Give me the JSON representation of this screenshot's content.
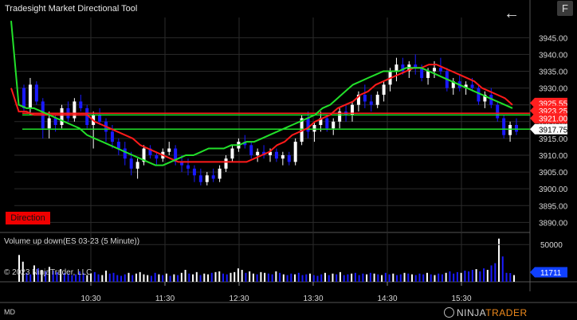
{
  "app": {
    "title": "Tradesight Market Directional Tool",
    "f_button": "F",
    "back_icon": "back-arrow-icon",
    "direction_label": "Direction",
    "volume_title": "Volume up down(ES 03-23 (5 Minute))",
    "copyright": "© 2023 NinjaTrader, LLC",
    "status": "MD",
    "brand_prefix": "NINJA",
    "brand_suffix": "TRADER",
    "brand_icon": "ninjatrader-logo-icon"
  },
  "colors": {
    "up_candle": "#ffffff",
    "down_candle": "#1a1aff",
    "red_line": "#ff1a1a",
    "green_line": "#22e02a",
    "volume_up": "#ffffff",
    "volume_down": "#1a1aff",
    "grid": "#2b2b2b",
    "label_red": "#ff1f1f",
    "label_white": "#ffffff",
    "label_blue": "#1040ff"
  },
  "chart_data": [
    {
      "type": "candlestick",
      "title": "Tradesight Market Directional Tool",
      "yticks": [
        3890,
        3895,
        3900,
        3905,
        3910,
        3915,
        3920,
        3925,
        3930,
        3935,
        3940,
        3945
      ],
      "ylim": [
        3887,
        3951
      ],
      "xticks": [
        "10:30",
        "11:30",
        "12:30",
        "13:30",
        "14:30",
        "15:30"
      ],
      "candles": [
        [
          3930,
          3931,
          3923,
          3924
        ],
        [
          3924,
          3933,
          3922,
          3931
        ],
        [
          3931,
          3932,
          3925,
          3926
        ],
        [
          3926,
          3927,
          3915,
          3918
        ],
        [
          3918,
          3923,
          3915,
          3921
        ],
        [
          3921,
          3922,
          3917,
          3919
        ],
        [
          3919,
          3925,
          3918,
          3924
        ],
        [
          3924,
          3926,
          3920,
          3921
        ],
        [
          3921,
          3927,
          3920,
          3926
        ],
        [
          3926,
          3928,
          3923,
          3924
        ],
        [
          3924,
          3925,
          3918,
          3919
        ],
        [
          3919,
          3923,
          3912,
          3922
        ],
        [
          3922,
          3924,
          3919,
          3920
        ],
        [
          3920,
          3921,
          3914,
          3917
        ],
        [
          3917,
          3919,
          3912,
          3914
        ],
        [
          3914,
          3915,
          3910,
          3912
        ],
        [
          3912,
          3914,
          3907,
          3909
        ],
        [
          3909,
          3911,
          3904,
          3906
        ],
        [
          3906,
          3909,
          3903,
          3908
        ],
        [
          3908,
          3913,
          3907,
          3912
        ],
        [
          3912,
          3913,
          3909,
          3910
        ],
        [
          3910,
          3911,
          3907,
          3909
        ],
        [
          3909,
          3912,
          3908,
          3911
        ],
        [
          3911,
          3914,
          3910,
          3912
        ],
        [
          3912,
          3913,
          3907,
          3908
        ],
        [
          3908,
          3910,
          3905,
          3907
        ],
        [
          3907,
          3909,
          3904,
          3906
        ],
        [
          3906,
          3907,
          3902,
          3904
        ],
        [
          3904,
          3906,
          3901,
          3902
        ],
        [
          3902,
          3905,
          3901,
          3904
        ],
        [
          3904,
          3906,
          3902,
          3903
        ],
        [
          3903,
          3907,
          3902,
          3906
        ],
        [
          3906,
          3910,
          3905,
          3909
        ],
        [
          3909,
          3913,
          3908,
          3912
        ],
        [
          3912,
          3915,
          3911,
          3914
        ],
        [
          3914,
          3916,
          3912,
          3913
        ],
        [
          3913,
          3914,
          3909,
          3910
        ],
        [
          3910,
          3912,
          3908,
          3911
        ],
        [
          3911,
          3913,
          3909,
          3910
        ],
        [
          3910,
          3912,
          3908,
          3911
        ],
        [
          3911,
          3912,
          3908,
          3909
        ],
        [
          3909,
          3911,
          3907,
          3910
        ],
        [
          3910,
          3911,
          3907,
          3908
        ],
        [
          3908,
          3915,
          3907,
          3914
        ],
        [
          3914,
          3922,
          3913,
          3921
        ],
        [
          3921,
          3923,
          3915,
          3917
        ],
        [
          3917,
          3920,
          3914,
          3919
        ],
        [
          3919,
          3923,
          3917,
          3921
        ],
        [
          3921,
          3922,
          3917,
          3918
        ],
        [
          3918,
          3921,
          3916,
          3920
        ],
        [
          3920,
          3924,
          3918,
          3923
        ],
        [
          3923,
          3925,
          3920,
          3922
        ],
        [
          3922,
          3926,
          3920,
          3925
        ],
        [
          3925,
          3929,
          3923,
          3928
        ],
        [
          3928,
          3931,
          3924,
          3926
        ],
        [
          3926,
          3928,
          3923,
          3925
        ],
        [
          3925,
          3929,
          3924,
          3928
        ],
        [
          3928,
          3932,
          3926,
          3931
        ],
        [
          3931,
          3936,
          3929,
          3935
        ],
        [
          3935,
          3939,
          3932,
          3937
        ],
        [
          3937,
          3939,
          3934,
          3935
        ],
        [
          3935,
          3938,
          3933,
          3937
        ],
        [
          3937,
          3940,
          3934,
          3936
        ],
        [
          3936,
          3937,
          3932,
          3933
        ],
        [
          3933,
          3936,
          3931,
          3935
        ],
        [
          3935,
          3938,
          3933,
          3936
        ],
        [
          3936,
          3939,
          3934,
          3935
        ],
        [
          3935,
          3936,
          3929,
          3930
        ],
        [
          3930,
          3933,
          3928,
          3932
        ],
        [
          3932,
          3934,
          3929,
          3930
        ],
        [
          3930,
          3932,
          3928,
          3931
        ],
        [
          3931,
          3933,
          3929,
          3930
        ],
        [
          3930,
          3931,
          3925,
          3926
        ],
        [
          3926,
          3929,
          3924,
          3928
        ],
        [
          3928,
          3930,
          3924,
          3925
        ],
        [
          3925,
          3926,
          3920,
          3921
        ],
        [
          3921,
          3922,
          3915,
          3916
        ],
        [
          3916,
          3920,
          3914,
          3919
        ],
        [
          3919,
          3921,
          3916,
          3917
        ]
      ],
      "red_line": [
        3930,
        3923,
        3923,
        3922,
        3922,
        3922,
        3922,
        3922,
        3922,
        3922,
        3922,
        3920,
        3919,
        3918,
        3917,
        3916,
        3915,
        3913,
        3912,
        3911,
        3910,
        3909,
        3908,
        3908,
        3908,
        3908,
        3908,
        3908,
        3908,
        3908,
        3908,
        3908,
        3909,
        3910,
        3911,
        3913,
        3914,
        3916,
        3917,
        3918,
        3920,
        3921,
        3922,
        3924,
        3925,
        3926,
        3928,
        3929,
        3931,
        3932,
        3933,
        3934,
        3935,
        3936,
        3936,
        3937,
        3937,
        3936,
        3935,
        3934,
        3933,
        3932,
        3930,
        3929,
        3928,
        3927,
        3925
      ],
      "green_line": [
        3950,
        3925,
        3924,
        3924,
        3923,
        3922,
        3921,
        3920,
        3919,
        3918,
        3916,
        3915,
        3914,
        3913,
        3912,
        3911,
        3910,
        3909,
        3908,
        3907,
        3907,
        3908,
        3909,
        3910,
        3910,
        3911,
        3912,
        3912,
        3912,
        3913,
        3913,
        3914,
        3914,
        3915,
        3916,
        3917,
        3918,
        3919,
        3920,
        3921,
        3922,
        3924,
        3925,
        3927,
        3929,
        3931,
        3932,
        3933,
        3934,
        3935,
        3935,
        3935,
        3936,
        3936,
        3936,
        3935,
        3934,
        3933,
        3932,
        3931,
        3930,
        3929,
        3928,
        3927,
        3926,
        3925,
        3924
      ],
      "levels": [
        {
          "value": 3922.5,
          "color": "#ff1a1a"
        },
        {
          "value": 3922.0,
          "color": "#22e02a"
        },
        {
          "value": 3917.75,
          "color": "#22e02a"
        }
      ],
      "price_labels": [
        {
          "text": "3925.55",
          "value": 3925.55,
          "bg": "#ff1f1f",
          "fg": "#ffffff"
        },
        {
          "text": "3923.25",
          "value": 3923.25,
          "bg": "#ff1f1f",
          "fg": "#ffffff"
        },
        {
          "text": "3921.00",
          "value": 3921.0,
          "bg": "#ff1f1f",
          "fg": "#ffffff"
        },
        {
          "text": "3917.75",
          "value": 3917.75,
          "bg": "#ffffff",
          "fg": "#000000"
        }
      ]
    },
    {
      "type": "bar",
      "title": "Volume up down(ES 03-23 (5 Minute))",
      "yticks": [
        50000
      ],
      "ylim": [
        0,
        62000
      ],
      "current_label": "11711",
      "current_value": 11711,
      "up": [
        1,
        1,
        0,
        0,
        1,
        0,
        1,
        0,
        1,
        0,
        0,
        1,
        0,
        0,
        0,
        0,
        0,
        0,
        1,
        1,
        0,
        0,
        1,
        1,
        0,
        0,
        0,
        0,
        0,
        1,
        0,
        1,
        1,
        1,
        1,
        0,
        0,
        1,
        0,
        1,
        0,
        1,
        0,
        1,
        1,
        0,
        1,
        1,
        0,
        1,
        1,
        0,
        1,
        1,
        0,
        0,
        1,
        1,
        1,
        1,
        0,
        1,
        1,
        0,
        1,
        1,
        0,
        0,
        1,
        0,
        1,
        0,
        0,
        1,
        0,
        0,
        0,
        1,
        0,
        0,
        0,
        1,
        0,
        1,
        0,
        1,
        0,
        0,
        1,
        0,
        0,
        0,
        1,
        0,
        1,
        0,
        1,
        0,
        0,
        1,
        0,
        0,
        1,
        0,
        1,
        0,
        0,
        0,
        1,
        0,
        1,
        0,
        0,
        1,
        0,
        0,
        0,
        1,
        0,
        0,
        0,
        1,
        0,
        0,
        1,
        0,
        0,
        1,
        0,
        0,
        0,
        1
      ],
      "values": [
        36000,
        27000,
        12000,
        10000,
        22000,
        18000,
        16000,
        14000,
        20000,
        15000,
        13000,
        17000,
        12000,
        11000,
        9000,
        10000,
        14000,
        12000,
        9000,
        11000,
        13000,
        10000,
        9000,
        15000,
        11000,
        12000,
        9000,
        8000,
        10000,
        12000,
        9000,
        11000,
        13000,
        10000,
        9000,
        8000,
        12000,
        10000,
        9000,
        11000,
        8000,
        10000,
        9000,
        12000,
        16000,
        11000,
        10000,
        13000,
        9000,
        11000,
        10000,
        12000,
        13000,
        14000,
        11000,
        10000,
        12000,
        13000,
        18000,
        16000,
        12000,
        14000,
        11000,
        10000,
        13000,
        12000,
        11000,
        10000,
        14000,
        12000,
        10000,
        9000,
        11000,
        10000,
        12000,
        9000,
        10000,
        11000,
        9000,
        8000,
        10000,
        12000,
        9000,
        11000,
        10000,
        13000,
        9000,
        10000,
        11000,
        12000,
        9000,
        11000,
        10000,
        12000,
        11000,
        10000,
        9000,
        12000,
        10000,
        11000,
        9000,
        10000,
        12000,
        11000,
        10000,
        9000,
        11000,
        10000,
        12000,
        10000,
        9000,
        11000,
        10000,
        12000,
        14000,
        11000,
        13000,
        12000,
        15000,
        14000,
        16000,
        17000,
        14000,
        18000,
        16000,
        22000,
        25000,
        58000,
        34000,
        12000,
        11711,
        9000
      ]
    }
  ]
}
